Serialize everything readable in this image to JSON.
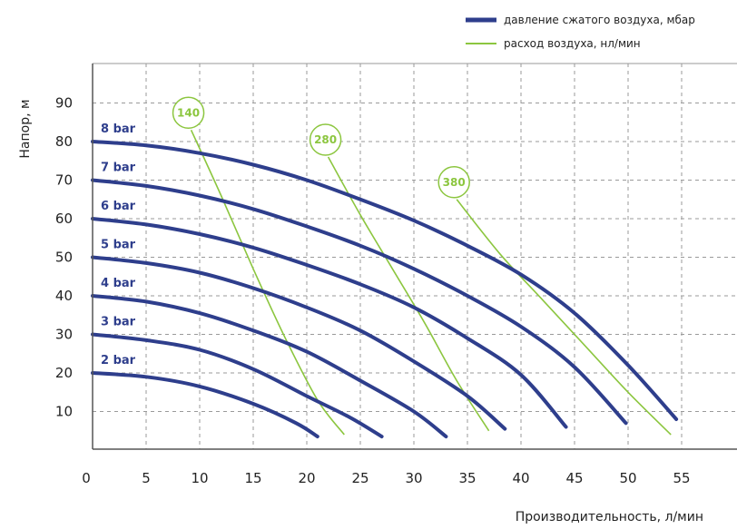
{
  "legend": {
    "pressure": "давление сжатого воздуха, мбар",
    "airflow": "расход воздуха, нл/мин"
  },
  "colors": {
    "pressure": "#2e3e8c",
    "airflow": "#8cc63f",
    "grid": "#9a9a9a",
    "axis": "#555555"
  },
  "chart_data": {
    "type": "line",
    "xlabel": "Производительность, л/мин",
    "ylabel": "Напор, м",
    "xlim": [
      0,
      55
    ],
    "ylim": [
      0,
      95
    ],
    "xticks": [
      "0",
      "5",
      "10",
      "15",
      "20",
      "25",
      "30",
      "35",
      "40",
      "45",
      "50",
      "55"
    ],
    "yticks": [
      "10",
      "20",
      "30",
      "40",
      "50",
      "60",
      "70",
      "80",
      "90"
    ],
    "grid": true,
    "legend_position": "top-right",
    "pressure_curves": [
      {
        "label": "2 bar",
        "points": [
          [
            0,
            20
          ],
          [
            5,
            19
          ],
          [
            10,
            16.5
          ],
          [
            15,
            12
          ],
          [
            19,
            7
          ],
          [
            21,
            3.5
          ]
        ]
      },
      {
        "label": "3 bar",
        "points": [
          [
            0,
            30
          ],
          [
            5,
            28.5
          ],
          [
            10,
            26
          ],
          [
            15,
            21
          ],
          [
            20,
            14
          ],
          [
            24,
            8.5
          ],
          [
            27,
            3.5
          ]
        ]
      },
      {
        "label": "4 bar",
        "points": [
          [
            0,
            40
          ],
          [
            5,
            38.5
          ],
          [
            10,
            35.5
          ],
          [
            15,
            31
          ],
          [
            20,
            25.5
          ],
          [
            25,
            18
          ],
          [
            30,
            10
          ],
          [
            33,
            3.5
          ]
        ]
      },
      {
        "label": "5 bar",
        "points": [
          [
            0,
            50
          ],
          [
            5,
            48.5
          ],
          [
            10,
            46
          ],
          [
            15,
            42
          ],
          [
            20,
            37
          ],
          [
            25,
            31
          ],
          [
            30,
            23
          ],
          [
            35,
            14
          ],
          [
            38.5,
            5.5
          ]
        ]
      },
      {
        "label": "6 bar",
        "points": [
          [
            0,
            60
          ],
          [
            5,
            58.5
          ],
          [
            10,
            56
          ],
          [
            15,
            52.5
          ],
          [
            20,
            48
          ],
          [
            25,
            43
          ],
          [
            30,
            37
          ],
          [
            35,
            29
          ],
          [
            40,
            19.5
          ],
          [
            44.2,
            6
          ]
        ]
      },
      {
        "label": "7 bar",
        "points": [
          [
            0,
            70
          ],
          [
            5,
            68.5
          ],
          [
            10,
            66
          ],
          [
            15,
            62.5
          ],
          [
            20,
            58
          ],
          [
            25,
            53
          ],
          [
            30,
            47
          ],
          [
            35,
            40
          ],
          [
            40,
            32
          ],
          [
            45,
            21.5
          ],
          [
            49.8,
            7
          ]
        ]
      },
      {
        "label": "8 bar",
        "points": [
          [
            0,
            80
          ],
          [
            5,
            79
          ],
          [
            10,
            77
          ],
          [
            15,
            74
          ],
          [
            20,
            70
          ],
          [
            25,
            65
          ],
          [
            30,
            59.5
          ],
          [
            35,
            53
          ],
          [
            40,
            45.5
          ],
          [
            45,
            35.5
          ],
          [
            50,
            22
          ],
          [
            54.5,
            8
          ]
        ]
      }
    ],
    "airflow_curves": [
      {
        "label": "140",
        "points": [
          [
            9.2,
            83
          ],
          [
            12,
            66
          ],
          [
            15,
            47
          ],
          [
            18,
            29
          ],
          [
            21,
            13
          ],
          [
            23.5,
            4
          ]
        ]
      },
      {
        "label": "280",
        "points": [
          [
            22,
            76
          ],
          [
            25,
            61
          ],
          [
            28,
            47
          ],
          [
            31,
            33
          ],
          [
            34,
            18
          ],
          [
            37,
            5
          ]
        ]
      },
      {
        "label": "380",
        "points": [
          [
            34,
            65
          ],
          [
            38,
            51
          ],
          [
            42,
            39
          ],
          [
            46,
            27
          ],
          [
            50,
            15
          ],
          [
            54,
            4
          ]
        ]
      }
    ]
  }
}
